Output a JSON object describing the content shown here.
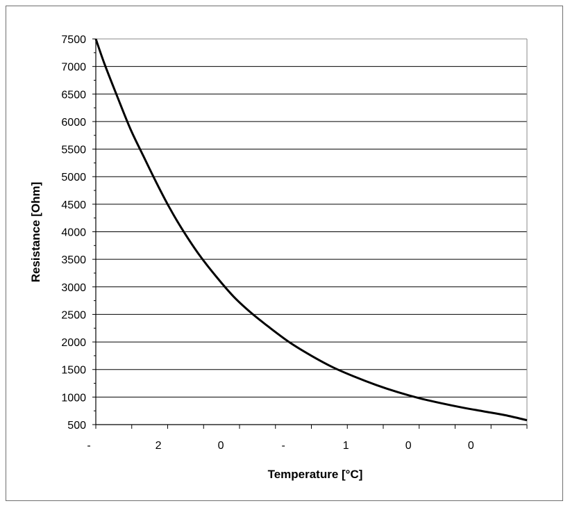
{
  "chart_data": {
    "type": "line",
    "xlabel": "Temperature [°C]",
    "ylabel": "Resistance [Ohm]",
    "ylim": [
      500,
      7500
    ],
    "yticks": [
      500,
      1000,
      1500,
      2000,
      2500,
      3000,
      3500,
      4000,
      4500,
      5000,
      5500,
      6000,
      6500,
      7000,
      7500
    ],
    "xlim": [
      0,
      100
    ],
    "xtick_labels": [
      {
        "x": 0,
        "label": "-"
      },
      {
        "x": 14.5,
        "label": "2"
      },
      {
        "x": 29,
        "label": "0"
      },
      {
        "x": 43.5,
        "label": "-"
      },
      {
        "x": 58,
        "label": "1"
      },
      {
        "x": 72.5,
        "label": "0"
      },
      {
        "x": 87,
        "label": "0"
      }
    ],
    "grid": "horizontal",
    "legend": "none",
    "line_color": "#000000",
    "series": [
      {
        "x": [
          0,
          2,
          5,
          8,
          11,
          14,
          17,
          20,
          24,
          28,
          32,
          36,
          40,
          45,
          50,
          55,
          60,
          65,
          70,
          75,
          80,
          85,
          90,
          95,
          100
        ],
        "values": [
          7500,
          7050,
          6450,
          5870,
          5380,
          4900,
          4450,
          4050,
          3580,
          3180,
          2820,
          2530,
          2280,
          1990,
          1750,
          1540,
          1370,
          1220,
          1090,
          980,
          890,
          810,
          740,
          670,
          580
        ]
      }
    ]
  }
}
